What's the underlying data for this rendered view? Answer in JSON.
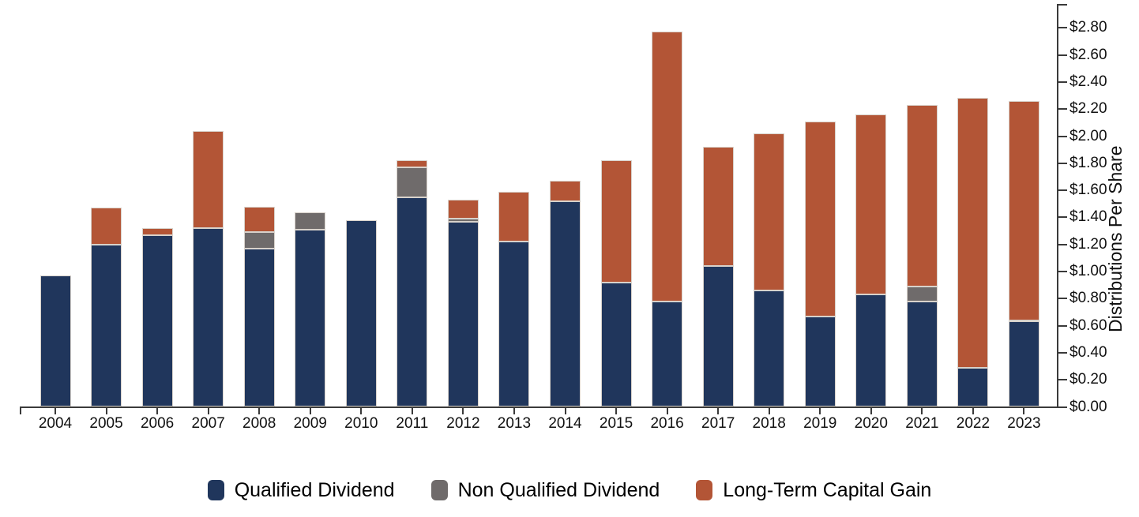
{
  "chart_data": {
    "type": "bar",
    "stacked": true,
    "title": "",
    "xlabel": "",
    "ylabel": "Distributions Per Share",
    "ylim": [
      0,
      2.97
    ],
    "ytick_step": 0.2,
    "ytick_labels": [
      "$0.00",
      "$0.20",
      "$0.40",
      "$0.60",
      "$0.80",
      "$1.00",
      "$1.20",
      "$1.40",
      "$1.60",
      "$1.80",
      "$2.00",
      "$2.20",
      "$2.40",
      "$2.60",
      "$2.80"
    ],
    "grid": false,
    "axis_side": "right",
    "legend_position": "bottom",
    "categories": [
      "2004",
      "2005",
      "2006",
      "2007",
      "2008",
      "2009",
      "2010",
      "2011",
      "2012",
      "2013",
      "2014",
      "2015",
      "2016",
      "2017",
      "2018",
      "2019",
      "2020",
      "2021",
      "2022",
      "2023"
    ],
    "series": [
      {
        "name": "Qualified Dividend",
        "color": "#20365c",
        "values": [
          0.97,
          1.2,
          1.27,
          1.32,
          1.17,
          1.31,
          1.38,
          1.55,
          1.37,
          1.22,
          1.52,
          0.92,
          0.78,
          1.04,
          0.86,
          0.67,
          0.83,
          0.78,
          0.29,
          0.63
        ]
      },
      {
        "name": "Non Qualified Dividend",
        "color": "#6f6b6b",
        "values": [
          0,
          0,
          0,
          0,
          0.12,
          0.13,
          0,
          0.22,
          0.02,
          0,
          0,
          0,
          0,
          0,
          0,
          0,
          0,
          0.11,
          0,
          0.01
        ]
      },
      {
        "name": "Long-Term Capital Gain",
        "color": "#b35536",
        "values": [
          0,
          0.27,
          0.05,
          0.72,
          0.19,
          0,
          0,
          0.05,
          0.14,
          0.37,
          0.15,
          0.9,
          1.99,
          0.88,
          1.16,
          1.44,
          1.33,
          1.34,
          1.99,
          1.62
        ]
      }
    ],
    "totals": [
      0.97,
      1.47,
      1.32,
      2.04,
      1.48,
      1.44,
      1.38,
      1.82,
      1.53,
      1.59,
      1.67,
      1.82,
      2.77,
      1.92,
      2.02,
      2.11,
      2.16,
      2.23,
      2.28,
      2.26
    ],
    "axis_color": "#3a3a3a",
    "bar_border_color": "#d8d2cb"
  }
}
